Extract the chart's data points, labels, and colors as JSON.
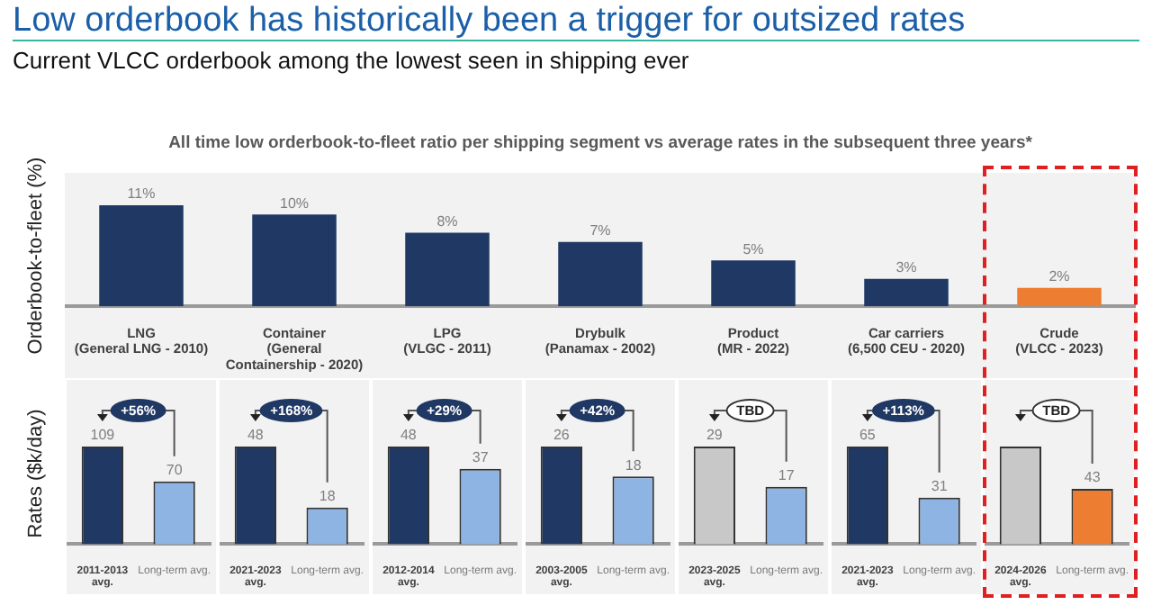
{
  "chart_data": [
    {
      "type": "bar",
      "title": "Low orderbook has historically been a trigger for outsized rates",
      "subtitle": "Current VLCC orderbook among the lowest seen in shipping ever",
      "annotations": [
        "All time low orderbook-to-fleet ratio per shipping segment vs average rates in the subsequent three years*"
      ],
      "ylabel": "Orderbook-to-fleet (%)",
      "categories": [
        "LNG\n(General LNG - 2010)",
        "Container\n(General\nContainership - 2020)",
        "LPG\n(VLGC - 2011)",
        "Drybulk\n(Panamax - 2002)",
        "Product\n(MR - 2022)",
        "Car carriers\n(6,500 CEU - 2020)",
        "Crude\n(VLCC - 2023)"
      ],
      "values": [
        11,
        10,
        8,
        7,
        5,
        3,
        2
      ],
      "colors": [
        "#1f3864",
        "#1f3864",
        "#1f3864",
        "#1f3864",
        "#1f3864",
        "#1f3864",
        "#ed7d31"
      ],
      "value_labels": [
        "11%",
        "10%",
        "8%",
        "7%",
        "5%",
        "3%",
        "2%"
      ]
    },
    {
      "type": "bar",
      "ylabel": "Rates ($k/day)",
      "categories": [
        "2011-2013\navg.",
        "Long-term avg."
      ],
      "values": [
        109,
        70
      ],
      "colors": [
        "#1f3864",
        "#8eb4e3"
      ],
      "data_labels": true,
      "annotations": [
        "+56%"
      ]
    },
    {
      "type": "bar",
      "categories": [
        "2021-2023\navg.",
        "Long-term avg."
      ],
      "values": [
        48,
        18
      ],
      "colors": [
        "#1f3864",
        "#8eb4e3"
      ],
      "data_labels": true,
      "annotations": [
        "+168%"
      ]
    },
    {
      "type": "bar",
      "categories": [
        "2012-2014\navg.",
        "Long-term avg."
      ],
      "values": [
        48,
        37
      ],
      "colors": [
        "#1f3864",
        "#8eb4e3"
      ],
      "data_labels": true,
      "annotations": [
        "+29%"
      ]
    },
    {
      "type": "bar",
      "categories": [
        "2003-2005\navg.",
        "Long-term avg."
      ],
      "values": [
        26,
        18
      ],
      "colors": [
        "#1f3864",
        "#8eb4e3"
      ],
      "data_labels": true,
      "annotations": [
        "+42%"
      ]
    },
    {
      "type": "bar",
      "categories": [
        "2023-2025\navg.",
        "Long-term avg."
      ],
      "values": [
        29,
        17
      ],
      "colors": [
        "#c8c8c8",
        "#8eb4e3"
      ],
      "data_labels": true,
      "annotations": [
        "TBD"
      ]
    },
    {
      "type": "bar",
      "categories": [
        "2021-2023\navg.",
        "Long-term avg."
      ],
      "values": [
        65,
        31
      ],
      "colors": [
        "#1f3864",
        "#8eb4e3"
      ],
      "data_labels": true,
      "annotations": [
        "+113%"
      ]
    },
    {
      "type": "bar",
      "categories": [
        "2024-2026\navg.",
        "Long-term avg."
      ],
      "values": [
        76,
        43
      ],
      "colors": [
        "#c8c8c8",
        "#ed7d31"
      ],
      "value_labels": [
        null,
        "43"
      ],
      "annotations": [
        "TBD"
      ]
    }
  ]
}
